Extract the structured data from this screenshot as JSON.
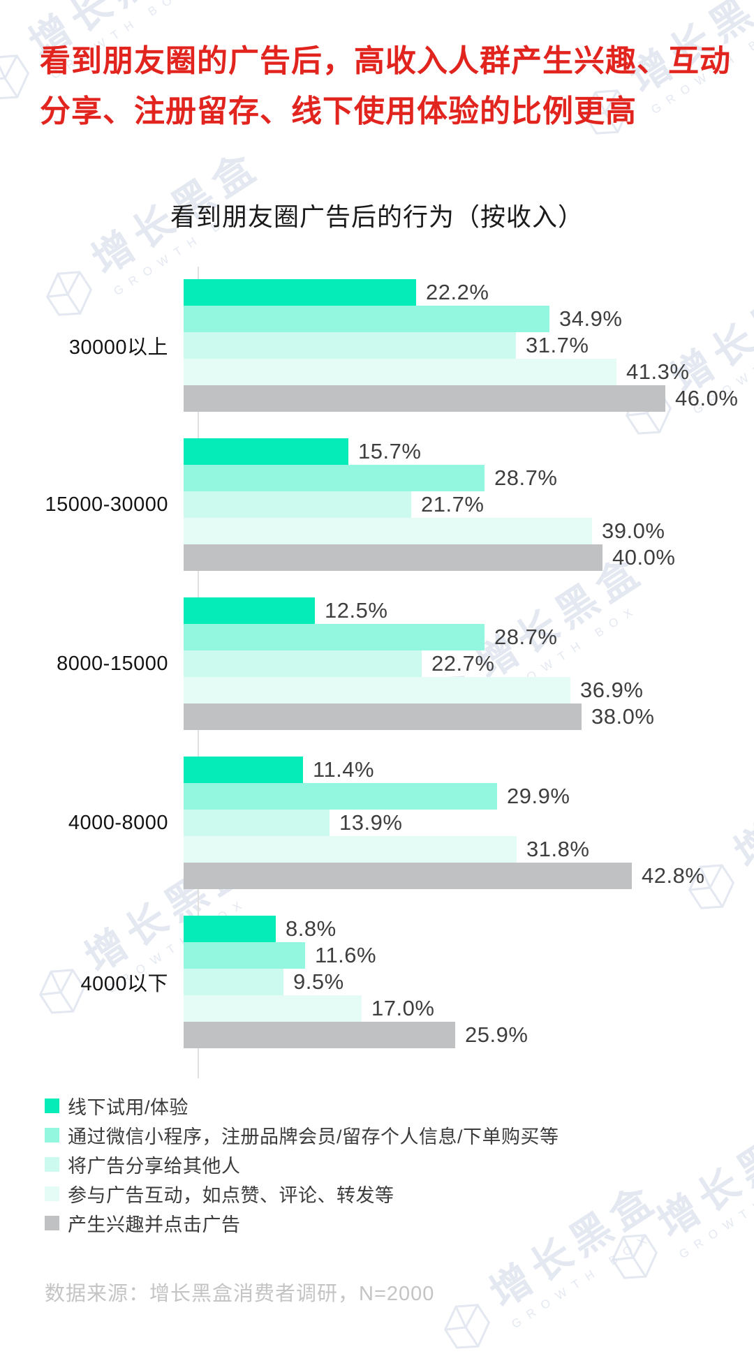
{
  "title": {
    "line1": "看到朋友圈的广告后，高收入人群产生兴趣、互动",
    "line2": "分享、注册留存、线下使用体验的比例更高",
    "color": "#e2241f"
  },
  "chart_data": {
    "type": "bar",
    "orientation": "horizontal",
    "title": "看到朋友圈广告后的行为（按收入）",
    "categories": [
      "30000以上",
      "15000-30000",
      "8000-15000",
      "4000-8000",
      "4000以下"
    ],
    "series": [
      {
        "name": "线下试用/体验",
        "color": "#06ecb8",
        "values": [
          22.2,
          15.7,
          12.5,
          11.4,
          8.8
        ]
      },
      {
        "name": "通过微信小程序，注册品牌会员/留存个人信息/下单购买等",
        "color": "#93f6df",
        "values": [
          34.9,
          28.7,
          28.7,
          29.9,
          11.6
        ]
      },
      {
        "name": "将广告分享给其他人",
        "color": "#cdfaee",
        "values": [
          31.7,
          21.7,
          22.7,
          13.9,
          9.5
        ]
      },
      {
        "name": "参与广告互动，如点赞、评论、转发等",
        "color": "#e5fcf6",
        "values": [
          41.3,
          39.0,
          36.9,
          31.8,
          17.0
        ]
      },
      {
        "name": "产生兴趣并点击广告",
        "color": "#c0c1c3",
        "values": [
          46.0,
          40.0,
          38.0,
          42.8,
          25.9
        ]
      }
    ],
    "value_suffix": "%",
    "xlim": [
      0,
      50
    ],
    "grid": false,
    "legend_position": "bottom-left",
    "value_labels": "outside-end"
  },
  "footer": {
    "text": "数据来源：增长黑盒消费者调研，N=2000"
  },
  "watermark": {
    "cn": "增长黑盒",
    "en": "GROWTH BOX"
  }
}
